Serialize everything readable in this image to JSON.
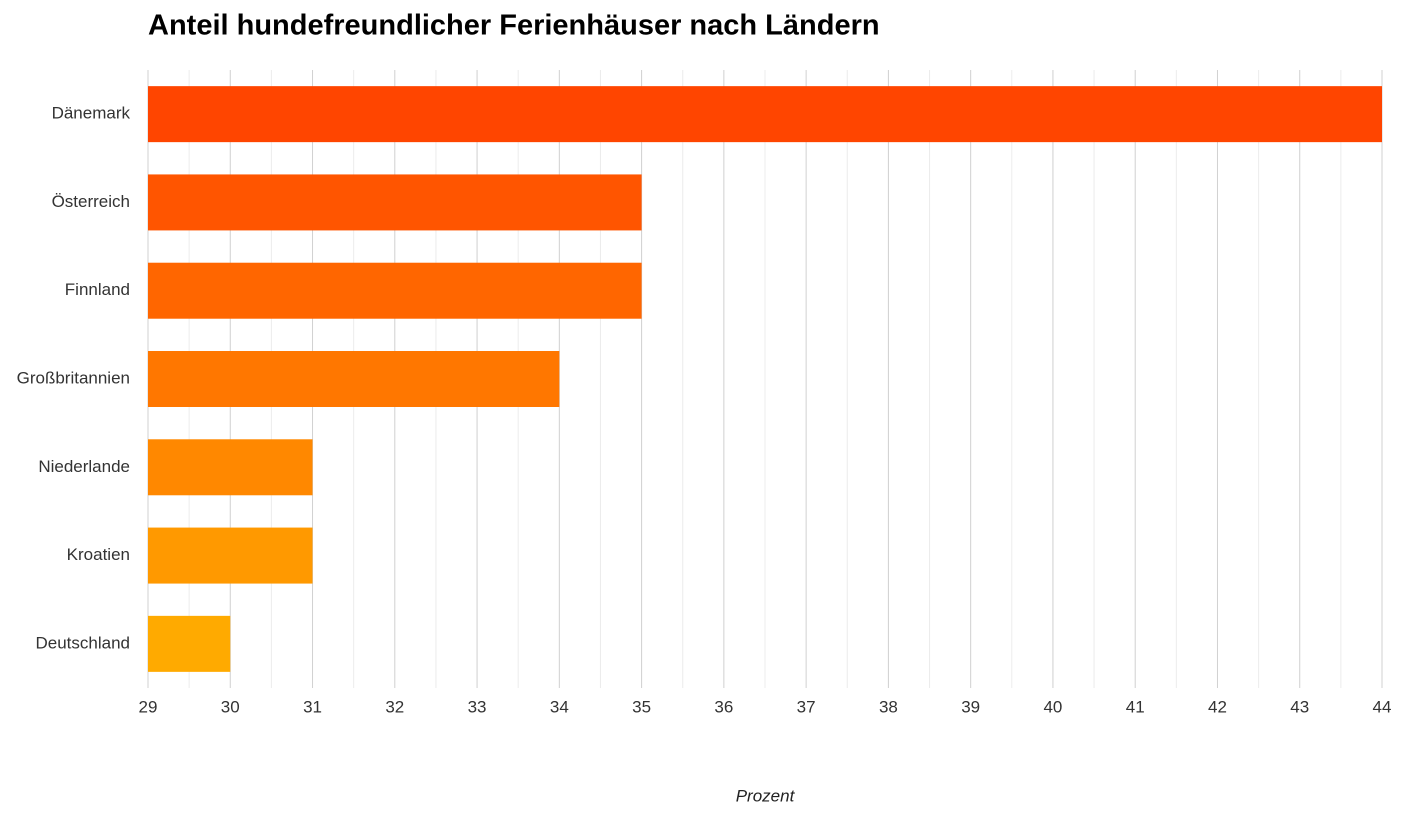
{
  "chart_data": {
    "type": "bar",
    "orientation": "horizontal",
    "title": "Anteil hundefreundlicher Ferienhäuser nach Ländern",
    "x_label": "Prozent",
    "categories": [
      "Dänemark",
      "Österreich",
      "Finnland",
      "Großbritannien",
      "Niederlande",
      "Kroatien",
      "Deutschland"
    ],
    "values": [
      44,
      35,
      35,
      34,
      31,
      31,
      30
    ],
    "colors": [
      "#ff4500",
      "#ff5500",
      "#ff6600",
      "#ff7700",
      "#ff8800",
      "#ff9900",
      "#ffaa00"
    ],
    "xlim": [
      29,
      44
    ],
    "xticks": [
      29,
      30,
      31,
      32,
      33,
      34,
      35,
      36,
      37,
      38,
      39,
      40,
      41,
      42,
      43,
      44
    ],
    "grid": true,
    "minor_grid": true
  }
}
